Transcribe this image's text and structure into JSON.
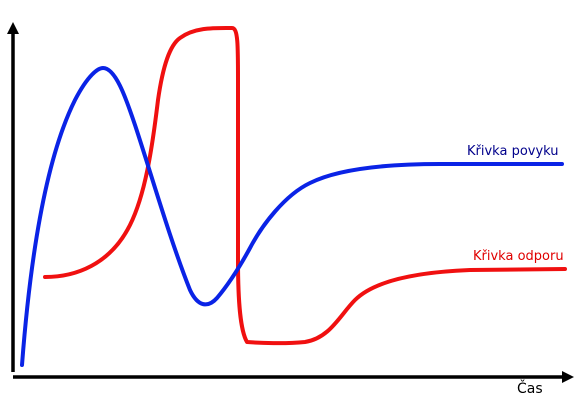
{
  "labels": {
    "x_axis": "Čas",
    "blue_curve": "Křivka povyku",
    "red_curve": "Křivka odporu"
  },
  "colors": {
    "blue_curve": "#0a23e6",
    "red_curve": "#f01010",
    "blue_label": "#00008b",
    "red_label": "#e00000",
    "axes": "#000000"
  }
}
